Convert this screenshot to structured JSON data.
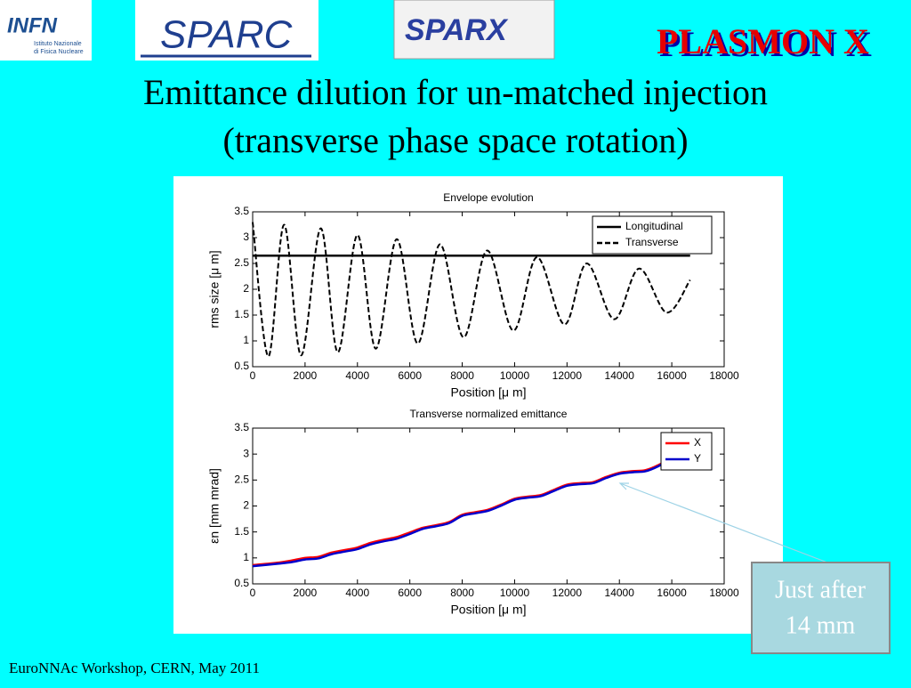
{
  "slide": {
    "title_lines": [
      "Emittance dilution for un-matched injection",
      "(transverse phase space rotation)"
    ],
    "footer": "EuroNNAc Workshop, CERN, May 2011",
    "callout": [
      "Just after",
      "14 mm"
    ]
  },
  "logos": {
    "infn": "INFN",
    "infn_sub": [
      "Istituto Nazionale",
      "di Fisica Nucleare"
    ],
    "sparc": "SPARC",
    "sparx": "SPARX",
    "plasmon": "PLASMON X"
  },
  "chart_data": [
    {
      "type": "line",
      "title": "Envelope evolution",
      "xlabel": "Position [μ m]",
      "ylabel": "rms size [μ m]",
      "xlim": [
        0,
        18000
      ],
      "ylim": [
        0.5,
        3.5
      ],
      "xticks": [
        0,
        2000,
        4000,
        6000,
        8000,
        10000,
        12000,
        14000,
        16000,
        18000
      ],
      "yticks": [
        0.5,
        1,
        1.5,
        2,
        2.5,
        3,
        3.5
      ],
      "legend": "upper right",
      "series": [
        {
          "name": "Longitudinal",
          "color": "#000000",
          "linestyle": "solid",
          "x": [
            0,
            16700
          ],
          "values": [
            2.65,
            2.65
          ]
        },
        {
          "name": "Transverse",
          "color": "#000000",
          "linestyle": "dashed",
          "x": [
            0,
            600,
            1200,
            1850,
            2600,
            3250,
            4000,
            4700,
            5500,
            6300,
            7150,
            8050,
            8950,
            9950,
            10850,
            11900,
            12750,
            13800,
            14750,
            15800,
            16700
          ],
          "values": [
            3.3,
            0.7,
            3.25,
            0.72,
            3.18,
            0.78,
            3.05,
            0.85,
            2.97,
            0.95,
            2.87,
            1.07,
            2.75,
            1.2,
            2.62,
            1.32,
            2.5,
            1.42,
            2.4,
            1.55,
            2.18
          ]
        }
      ]
    },
    {
      "type": "line",
      "title": "Transverse normalized emittance",
      "xlabel": "Position [μ m]",
      "ylabel": "εn [mm mrad]",
      "xlim": [
        0,
        18000
      ],
      "ylim": [
        0.5,
        3.5
      ],
      "xticks": [
        0,
        2000,
        4000,
        6000,
        8000,
        10000,
        12000,
        14000,
        16000,
        18000
      ],
      "yticks": [
        0.5,
        1,
        1.5,
        2,
        2.5,
        3,
        3.5
      ],
      "legend": "upper right",
      "series": [
        {
          "name": "X",
          "color": "#ff0000",
          "linestyle": "solid",
          "x": [
            0,
            1000,
            1500,
            2000,
            2500,
            3000,
            3500,
            4000,
            4500,
            5000,
            5500,
            6000,
            6500,
            7000,
            7500,
            8000,
            8500,
            9000,
            9500,
            10000,
            10500,
            11000,
            11500,
            12000,
            12500,
            13000,
            13500,
            14000,
            14500,
            15000,
            15500,
            15800
          ],
          "values": [
            0.86,
            0.91,
            0.95,
            1.0,
            1.02,
            1.1,
            1.15,
            1.2,
            1.29,
            1.35,
            1.4,
            1.49,
            1.58,
            1.63,
            1.69,
            1.83,
            1.88,
            1.93,
            2.03,
            2.14,
            2.18,
            2.21,
            2.31,
            2.41,
            2.44,
            2.46,
            2.56,
            2.64,
            2.67,
            2.69,
            2.79,
            2.89
          ]
        },
        {
          "name": "Y",
          "color": "#0000cc",
          "linestyle": "solid",
          "x": [
            0,
            1000,
            1500,
            2000,
            2500,
            3000,
            3500,
            4000,
            4500,
            5000,
            5500,
            6000,
            6500,
            7000,
            7500,
            8000,
            8500,
            9000,
            9500,
            10000,
            10500,
            11000,
            11500,
            12000,
            12500,
            13000,
            13500,
            14000,
            14500,
            15000,
            15500,
            15800
          ],
          "values": [
            0.84,
            0.89,
            0.92,
            0.97,
            0.99,
            1.07,
            1.12,
            1.17,
            1.26,
            1.32,
            1.37,
            1.46,
            1.56,
            1.61,
            1.67,
            1.81,
            1.86,
            1.91,
            2.01,
            2.12,
            2.16,
            2.19,
            2.29,
            2.39,
            2.42,
            2.44,
            2.54,
            2.62,
            2.65,
            2.67,
            2.77,
            2.87
          ]
        }
      ]
    }
  ]
}
